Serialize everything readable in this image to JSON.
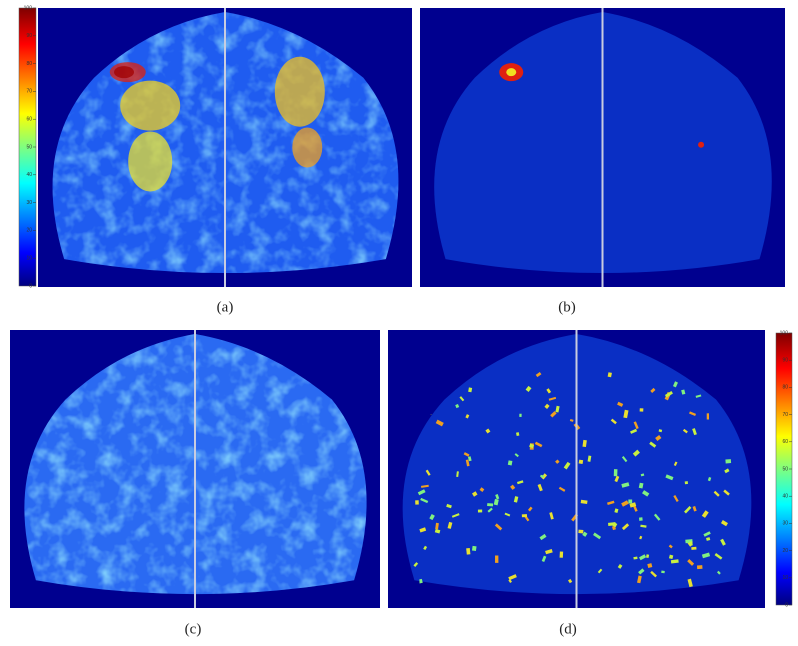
{
  "panels": [
    {
      "label": "(a)"
    },
    {
      "label": "(b)"
    },
    {
      "label": "(c)"
    },
    {
      "label": "(d)"
    }
  ],
  "colorbars": [
    {
      "ticks": [
        0,
        10,
        20,
        30,
        40,
        50,
        60,
        70,
        80,
        90,
        100
      ]
    },
    {
      "ticks": [
        0,
        10,
        20,
        30,
        40,
        50,
        60,
        70,
        80,
        90,
        100
      ]
    }
  ]
}
